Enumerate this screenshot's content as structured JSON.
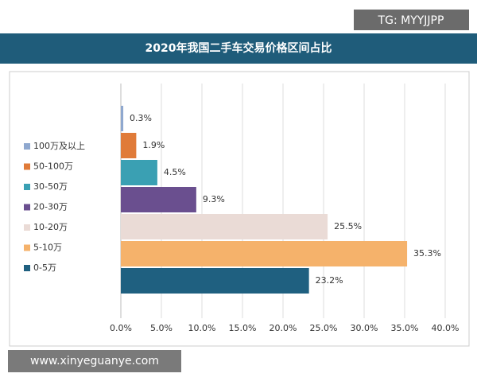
{
  "watermark_top": "TG: MYYJJPP",
  "watermark_bottom": "www.xinyeguanye.com",
  "chart_data": {
    "type": "bar",
    "orientation": "horizontal",
    "title": "2020年我国二手车交易价格区间占比",
    "categories": [
      "100万及以上",
      "50-100万",
      "30-50万",
      "20-30万",
      "10-20万",
      "5-10万",
      "0-5万"
    ],
    "values": [
      0.3,
      1.9,
      4.5,
      9.3,
      25.5,
      35.3,
      23.2
    ],
    "value_labels": [
      "0.3%",
      "1.9%",
      "4.5%",
      "9.3%",
      "25.5%",
      "35.3%",
      "23.2%"
    ],
    "colors": [
      "#8fa8cf",
      "#e07b39",
      "#3aa0b3",
      "#6a4f8f",
      "#eadbd6",
      "#f5b26b",
      "#1f6080"
    ],
    "xlim": [
      0,
      40
    ],
    "xticks": [
      {
        "value": 0,
        "label": "0.0%"
      },
      {
        "value": 5,
        "label": "5.0%"
      },
      {
        "value": 10,
        "label": "10.0%"
      },
      {
        "value": 15,
        "label": "15.0%"
      },
      {
        "value": 20,
        "label": "20.0%"
      },
      {
        "value": 25,
        "label": "25.0%"
      },
      {
        "value": 30,
        "label": "30.0%"
      },
      {
        "value": 35,
        "label": "35.0%"
      },
      {
        "value": 40,
        "label": "40.0%"
      }
    ],
    "grid": true,
    "legend": "left"
  }
}
